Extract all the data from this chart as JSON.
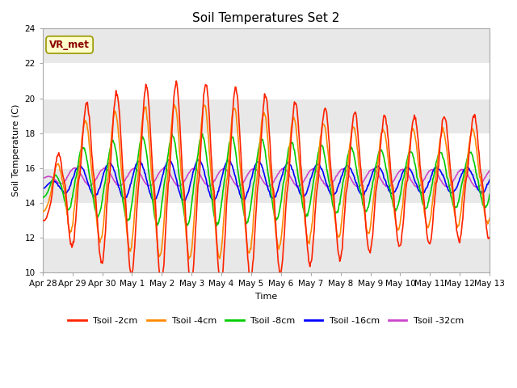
{
  "title": "Soil Temperatures Set 2",
  "xlabel": "Time",
  "ylabel": "Soil Temperature (C)",
  "ylim": [
    10,
    24
  ],
  "yticks": [
    10,
    12,
    14,
    16,
    18,
    20,
    22,
    24
  ],
  "annotation_text": "VR_met",
  "annotation_color": "#8B0000",
  "annotation_bg": "#ffffcc",
  "annotation_edge": "#999900",
  "series_colors": {
    "Tsoil -2cm": "#ff2200",
    "Tsoil -4cm": "#ff8800",
    "Tsoil -8cm": "#00cc00",
    "Tsoil -16cm": "#0000ff",
    "Tsoil -32cm": "#cc44cc"
  },
  "x_tick_labels": [
    "Apr 28",
    "Apr 29",
    "Apr 30",
    "May 1",
    "May 2",
    "May 3",
    "May 4",
    "May 5",
    "May 6",
    "May 7",
    "May 8",
    "May 9",
    "May 10",
    "May 11",
    "May 12",
    "May 13"
  ],
  "fig_width": 6.4,
  "fig_height": 4.8,
  "dpi": 100
}
